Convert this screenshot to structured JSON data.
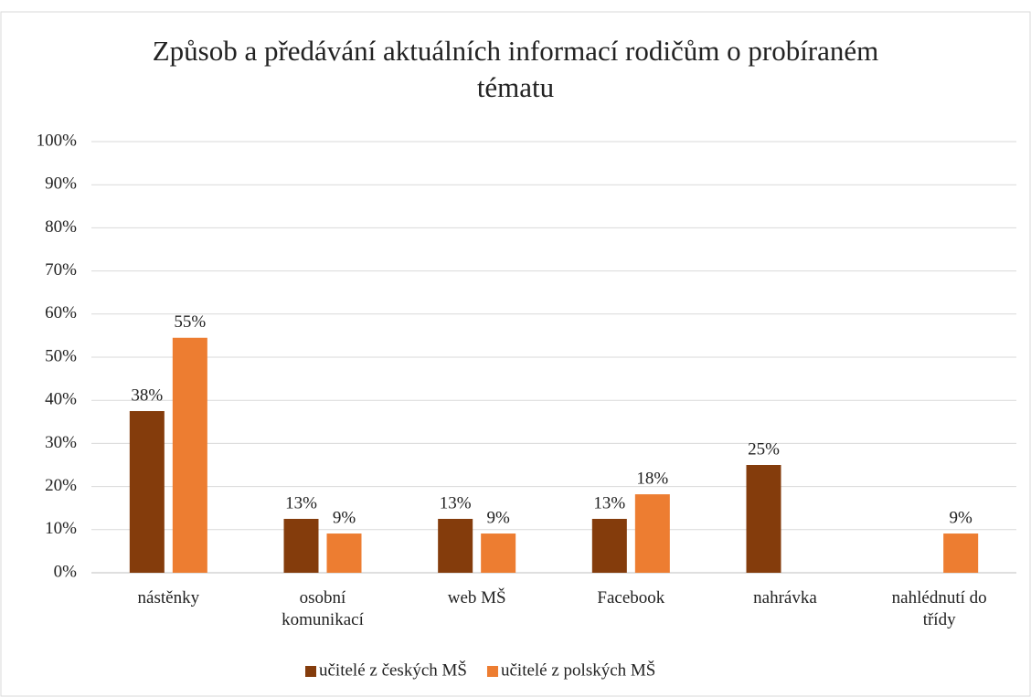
{
  "chart_data": {
    "type": "bar",
    "title": "Způsob a předávání aktuálních informací rodičům o probíraném tématu",
    "categories": [
      "nástěnky",
      "osobní komunikací",
      "web MŠ",
      "Facebook",
      "nahrávka",
      "nahlédnutí do třídy"
    ],
    "series": [
      {
        "name": "učitelé z českých MŠ",
        "color": "#843c0c",
        "values": [
          37.5,
          12.5,
          12.5,
          12.5,
          25,
          null
        ],
        "value_labels": [
          "38%",
          "13%",
          "13%",
          "13%",
          "25%",
          null
        ]
      },
      {
        "name": "učitelé z polských MŠ",
        "color": "#ed7d31",
        "values": [
          54.5,
          9.1,
          9.1,
          18.2,
          null,
          9.1
        ],
        "value_labels": [
          "55%",
          "9%",
          "9%",
          "18%",
          null,
          "9%"
        ]
      }
    ],
    "ylim": [
      0,
      100
    ],
    "yticks": [
      {
        "value": 0,
        "label": "0%"
      },
      {
        "value": 10,
        "label": "10%"
      },
      {
        "value": 20,
        "label": "20%"
      },
      {
        "value": 30,
        "label": "30%"
      },
      {
        "value": 40,
        "label": "40%"
      },
      {
        "value": 50,
        "label": "50%"
      },
      {
        "value": 60,
        "label": "60%"
      },
      {
        "value": 70,
        "label": "70%"
      },
      {
        "value": 80,
        "label": "80%"
      },
      {
        "value": 90,
        "label": "90%"
      },
      {
        "value": 100,
        "label": "100%"
      }
    ],
    "grid": true,
    "legend": "bottom"
  }
}
